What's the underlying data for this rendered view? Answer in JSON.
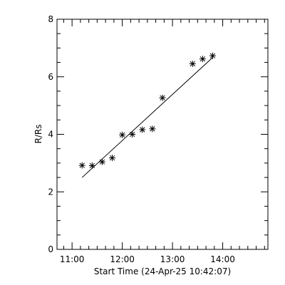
{
  "chart_data": {
    "type": "scatter",
    "title": "",
    "xlabel": "Start Time (24-Apr-25 10:42:07)",
    "ylabel": "R/Rs",
    "xlim": [
      "10:42",
      "14:54"
    ],
    "ylim": [
      0,
      8
    ],
    "x_ticks": [
      "11:00",
      "12:00",
      "13:00",
      "14:00"
    ],
    "y_ticks": [
      "0",
      "2",
      "4",
      "6",
      "8"
    ],
    "grid": false,
    "points": [
      {
        "x": "11:12",
        "y": 2.92
      },
      {
        "x": "11:24",
        "y": 2.91
      },
      {
        "x": "11:36",
        "y": 3.04
      },
      {
        "x": "11:48",
        "y": 3.18
      },
      {
        "x": "12:00",
        "y": 3.98
      },
      {
        "x": "12:12",
        "y": 4.0
      },
      {
        "x": "12:24",
        "y": 4.16
      },
      {
        "x": "12:36",
        "y": 4.19
      },
      {
        "x": "12:48",
        "y": 5.27
      },
      {
        "x": "13:24",
        "y": 6.45
      },
      {
        "x": "13:36",
        "y": 6.62
      },
      {
        "x": "13:48",
        "y": 6.73
      }
    ],
    "fit_line": {
      "start": {
        "x": "11:12",
        "y": 2.5
      },
      "end": {
        "x": "13:48",
        "y": 6.67
      }
    }
  }
}
